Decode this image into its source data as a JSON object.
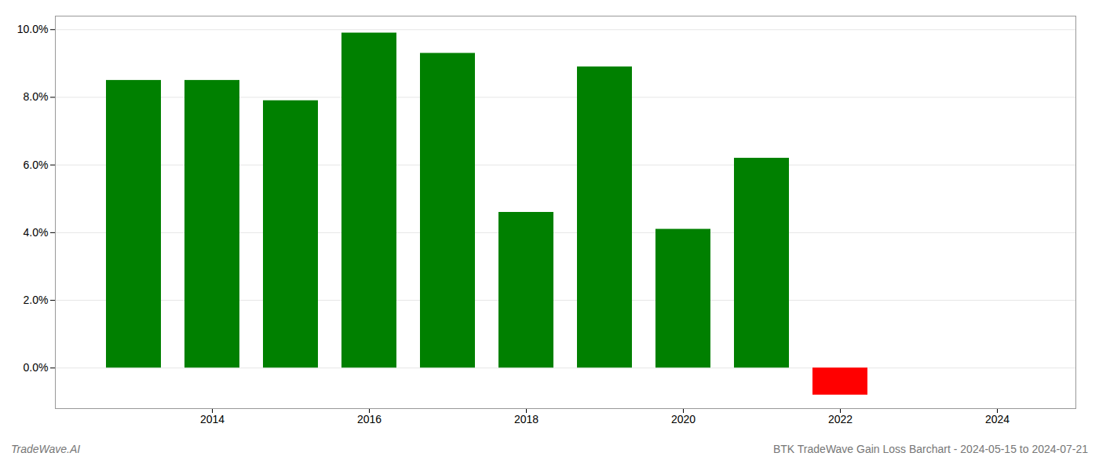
{
  "chart_data": {
    "type": "bar",
    "title": "BTK TradeWave Gain Loss Barchart - 2024-05-15 to 2024-07-21",
    "annotations": [
      "TradeWave.AI"
    ],
    "x": [
      2013,
      2014,
      2015,
      2016,
      2017,
      2018,
      2019,
      2020,
      2021,
      2022,
      2023
    ],
    "values": [
      0.085,
      0.085,
      0.079,
      0.099,
      0.093,
      0.046,
      0.089,
      0.041,
      0.062,
      -0.008,
      null
    ],
    "colors": [
      "#008000",
      "#008000",
      "#008000",
      "#008000",
      "#008000",
      "#008000",
      "#008000",
      "#008000",
      "#008000",
      "#ff0000",
      null
    ],
    "xlim": [
      2012.0,
      2025.0
    ],
    "xticks": [
      2014,
      2016,
      2018,
      2020,
      2022,
      2024
    ],
    "ylim": [
      -0.012,
      0.104
    ],
    "yticks": [
      {
        "value": 0.0,
        "label": "0.0%"
      },
      {
        "value": 0.02,
        "label": "2.0%"
      },
      {
        "value": 0.04,
        "label": "4.0%"
      },
      {
        "value": 0.06,
        "label": "6.0%"
      },
      {
        "value": 0.08,
        "label": "8.0%"
      },
      {
        "value": 0.1,
        "label": "10.0%"
      }
    ],
    "grid": true
  }
}
